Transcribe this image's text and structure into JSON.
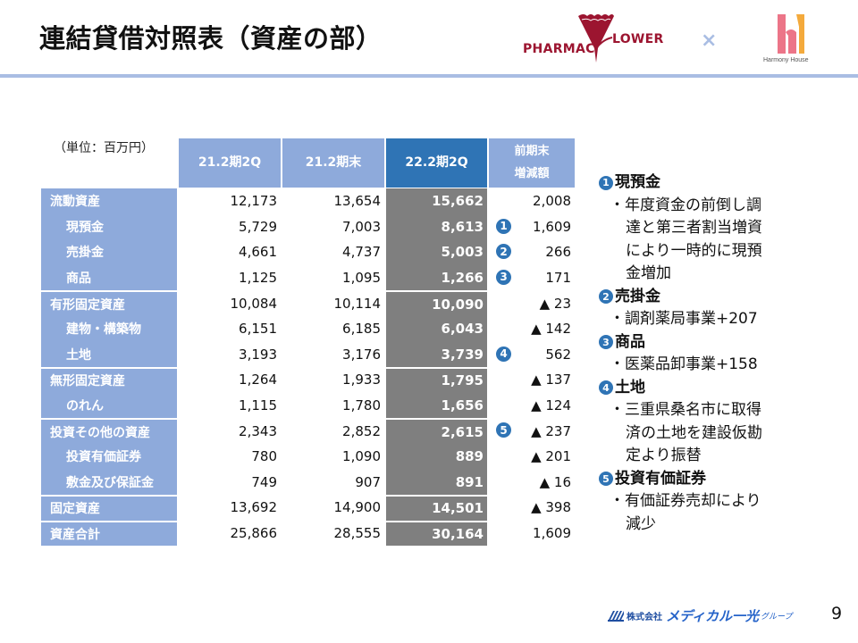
{
  "slide": {
    "title": "連結貸借対照表（資産の部）",
    "page_number": "9",
    "accent_color": "#a9bde3"
  },
  "logos": {
    "left_brand_part1": "PHARMAC",
    "left_brand_part2": "LOWER",
    "separator": "×",
    "right_brand": "Harmony House",
    "footer_corp": "株式会社",
    "footer_name": "メディカル一光",
    "footer_group": "グループ"
  },
  "table": {
    "unit": "（単位：百万円）",
    "headers": [
      "21.2期2Q",
      "21.2期末",
      "22.2期2Q",
      "前期末\n増減額"
    ],
    "header_diff_line1": "前期末",
    "header_diff_line2": "増減額",
    "rows": [
      {
        "label": "流動資産",
        "indent": false,
        "v1": "12,173",
        "v2": "13,654",
        "v3": "15,662",
        "diff": "2,008",
        "marker": ""
      },
      {
        "label": "現預金",
        "indent": true,
        "v1": "5,729",
        "v2": "7,003",
        "v3": "8,613",
        "diff": "1,609",
        "marker": "1"
      },
      {
        "label": "売掛金",
        "indent": true,
        "v1": "4,661",
        "v2": "4,737",
        "v3": "5,003",
        "diff": "266",
        "marker": "2"
      },
      {
        "label": "商品",
        "indent": true,
        "v1": "1,125",
        "v2": "1,095",
        "v3": "1,266",
        "diff": "171",
        "marker": "3"
      },
      {
        "label": "有形固定資産",
        "indent": false,
        "v1": "10,084",
        "v2": "10,114",
        "v3": "10,090",
        "diff": "▲ 23",
        "marker": ""
      },
      {
        "label": "建物・構築物",
        "indent": true,
        "v1": "6,151",
        "v2": "6,185",
        "v3": "6,043",
        "diff": "▲ 142",
        "marker": ""
      },
      {
        "label": "土地",
        "indent": true,
        "v1": "3,193",
        "v2": "3,176",
        "v3": "3,739",
        "diff": "562",
        "marker": "4"
      },
      {
        "label": "無形固定資産",
        "indent": false,
        "v1": "1,264",
        "v2": "1,933",
        "v3": "1,795",
        "diff": "▲ 137",
        "marker": ""
      },
      {
        "label": "のれん",
        "indent": true,
        "v1": "1,115",
        "v2": "1,780",
        "v3": "1,656",
        "diff": "▲ 124",
        "marker": ""
      },
      {
        "label": "投資その他の資産",
        "indent": false,
        "v1": "2,343",
        "v2": "2,852",
        "v3": "2,615",
        "diff": "▲ 237",
        "marker": "5"
      },
      {
        "label": "投資有価証券",
        "indent": true,
        "v1": "780",
        "v2": "1,090",
        "v3": "889",
        "diff": "▲ 201",
        "marker": ""
      },
      {
        "label": "敷金及び保証金",
        "indent": true,
        "v1": "749",
        "v2": "907",
        "v3": "891",
        "diff": "▲ 16",
        "marker": ""
      },
      {
        "label": "固定資産",
        "indent": false,
        "v1": "13,692",
        "v2": "14,900",
        "v3": "14,501",
        "diff": "▲ 398",
        "marker": ""
      },
      {
        "label": "資産合計",
        "indent": false,
        "v1": "25,866",
        "v2": "28,555",
        "v3": "30,164",
        "diff": "1,609",
        "marker": ""
      }
    ]
  },
  "notes": [
    {
      "marker": "1",
      "title": "現預金",
      "lines": [
        "・年度資金の前倒し調",
        "達と第三者割当増資",
        "により一時的に現預",
        "金増加"
      ]
    },
    {
      "marker": "2",
      "title": "売掛金",
      "lines": [
        "・調剤薬局事業+207"
      ]
    },
    {
      "marker": "3",
      "title": "商品",
      "lines": [
        "・医薬品卸事業+158"
      ]
    },
    {
      "marker": "4",
      "title": "土地",
      "lines": [
        "・三重県桑名市に取得",
        "済の土地を建設仮勘",
        "定より振替"
      ]
    },
    {
      "marker": "5",
      "title": "投資有価証券",
      "lines": [
        "・有価証券売却により",
        "減少"
      ]
    }
  ]
}
